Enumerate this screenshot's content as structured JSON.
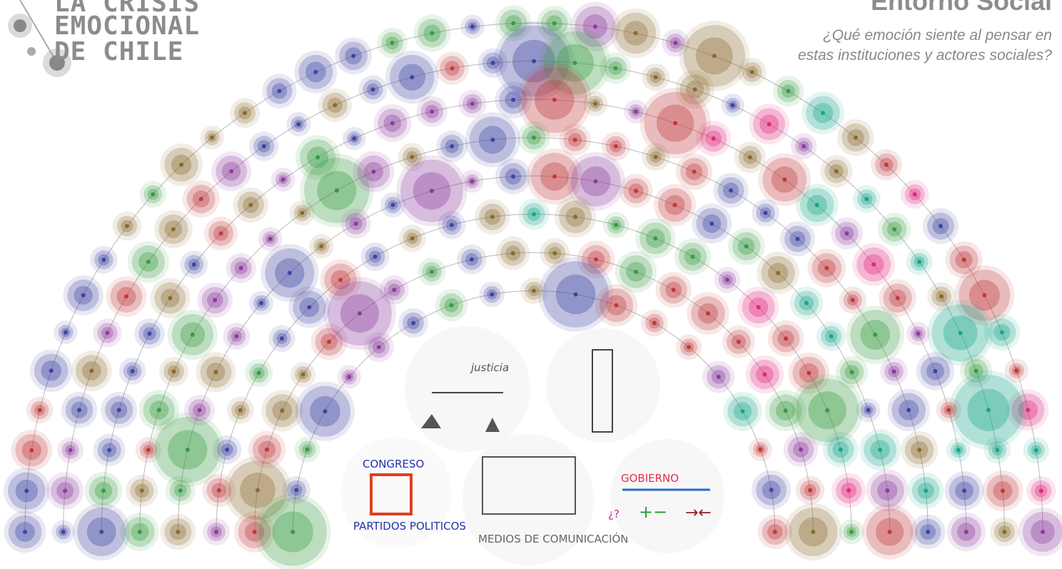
{
  "header": {
    "title_lines": [
      "LA CRISIS",
      "EMOCIONAL",
      "DE CHILE"
    ],
    "section": "Entorno Social",
    "subtitle_lines": [
      "¿Qué emoción siente al pensar en",
      "estas instituciones y actores sociales?"
    ]
  },
  "sketches": {
    "justice": "justicia",
    "congress": "CONGRESO",
    "parties": "PARTIDOS POLITICOS",
    "government": "GOBIERNO",
    "government_note": "¿?",
    "media": "MEDIOS DE COMUNICACIÓN"
  }
}
